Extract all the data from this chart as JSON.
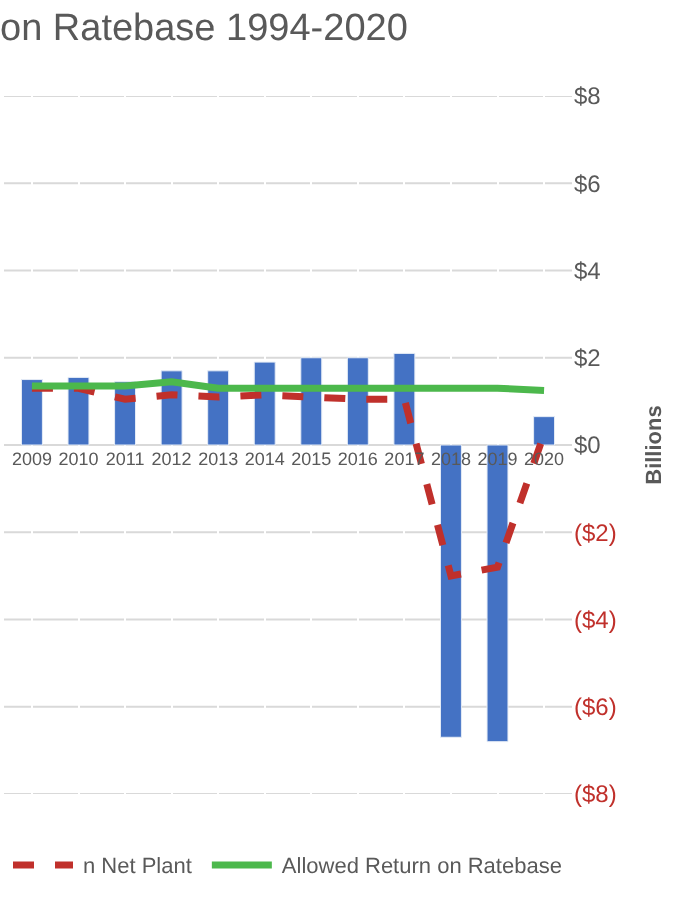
{
  "chart_data": {
    "type": "bar",
    "title": "on Ratebase 1994-2020",
    "ylabel": "Billions",
    "categories": [
      "2009",
      "2010",
      "2011",
      "2012",
      "2013",
      "2014",
      "2015",
      "2016",
      "2017",
      "2018",
      "2019",
      "2020"
    ],
    "series": [
      {
        "color": "#4472c4",
        "values": [
          1.5,
          1.55,
          1.45,
          1.7,
          1.7,
          1.9,
          2.0,
          2.0,
          2.1,
          -6.7,
          -6.8,
          0.65
        ]
      },
      {
        "type": "line",
        "name": "n Net Plant",
        "color": "#c0302b",
        "line_style": "dashed",
        "values": [
          1.3,
          1.3,
          1.05,
          1.15,
          1.1,
          1.15,
          1.1,
          1.05,
          1.05,
          -3.0,
          -2.8,
          0.25
        ]
      },
      {
        "type": "line",
        "name": "Allowed Return on Ratebase",
        "color": "#4cb84c",
        "line_style": "solid",
        "values": [
          1.35,
          1.35,
          1.35,
          1.45,
          1.3,
          1.3,
          1.3,
          1.3,
          1.3,
          1.3,
          1.3,
          1.25
        ]
      }
    ],
    "ylim": [
      -8,
      8
    ],
    "yticks": [
      {
        "value": 8,
        "label": "$8"
      },
      {
        "value": 6,
        "label": "$6"
      },
      {
        "value": 4,
        "label": "$4"
      },
      {
        "value": 2,
        "label": "$2"
      },
      {
        "value": 0,
        "label": "$0"
      },
      {
        "value": -2,
        "label": "($2)"
      },
      {
        "value": -4,
        "label": "($4)"
      },
      {
        "value": -6,
        "label": "($6)"
      },
      {
        "value": -8,
        "label": "($8)"
      }
    ],
    "grid": true,
    "legend": "bottom",
    "marker": "none"
  }
}
